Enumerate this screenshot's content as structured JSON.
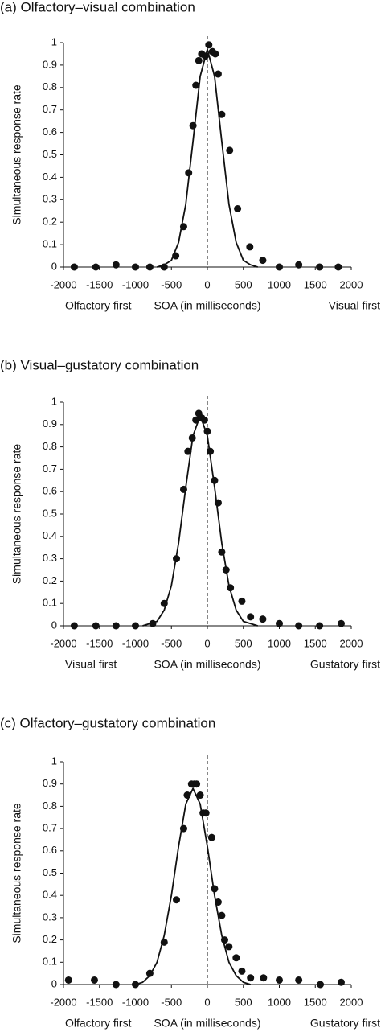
{
  "chart_data": [
    {
      "type": "scatter",
      "title": "(a) Olfactory–visual combination",
      "y_label": "Simultaneous response rate",
      "x_label": "SOA (in milliseconds)",
      "x_left_label": "Olfactory first",
      "x_right_label": "Visual first",
      "xlim": [
        -2000,
        2000
      ],
      "ylim": [
        0,
        1
      ],
      "xticks": [
        -2000,
        -1500,
        -1000,
        -500,
        0,
        500,
        1000,
        1500,
        2000
      ],
      "yticks": [
        0,
        0.1,
        0.2,
        0.3,
        0.4,
        0.5,
        0.6,
        0.7,
        0.8,
        0.9,
        1
      ],
      "reference_x": 0,
      "points": {
        "color": "#111111",
        "x": [
          -1850,
          -1550,
          -1270,
          -1000,
          -800,
          -600,
          -440,
          -330,
          -260,
          -200,
          -160,
          -120,
          -80,
          -30,
          20,
          70,
          110,
          150,
          200,
          310,
          420,
          590,
          770,
          1000,
          1270,
          1560,
          1820
        ],
        "y": [
          0,
          0,
          0.01,
          0,
          0,
          0,
          0.05,
          0.18,
          0.42,
          0.63,
          0.81,
          0.92,
          0.95,
          0.94,
          0.99,
          0.96,
          0.95,
          0.86,
          0.68,
          0.52,
          0.26,
          0.09,
          0.03,
          0,
          0.01,
          0,
          0
        ]
      },
      "fit": {
        "color": "#111111",
        "x": [
          -700,
          -600,
          -500,
          -400,
          -300,
          -200,
          -100,
          0,
          100,
          200,
          300,
          400,
          500,
          600,
          700
        ],
        "y": [
          0,
          0.01,
          0.03,
          0.11,
          0.28,
          0.56,
          0.85,
          0.97,
          0.85,
          0.56,
          0.28,
          0.11,
          0.03,
          0.01,
          0
        ]
      }
    },
    {
      "type": "scatter",
      "title": "(b) Visual–gustatory combination",
      "y_label": "Simultaneous response rate",
      "x_label": "SOA (in milliseconds)",
      "x_left_label": "Visual first",
      "x_right_label": "Gustatory first",
      "xlim": [
        -2000,
        2000
      ],
      "ylim": [
        0,
        1
      ],
      "xticks": [
        -2000,
        -1500,
        -1000,
        -500,
        0,
        500,
        1000,
        1500,
        2000
      ],
      "yticks": [
        0,
        0.1,
        0.2,
        0.3,
        0.4,
        0.5,
        0.6,
        0.7,
        0.8,
        0.9,
        1
      ],
      "reference_x": 0,
      "points": {
        "color": "#111111",
        "x": [
          -1850,
          -1550,
          -1270,
          -1000,
          -760,
          -600,
          -430,
          -330,
          -270,
          -210,
          -160,
          -120,
          -80,
          -40,
          0,
          40,
          100,
          150,
          200,
          260,
          320,
          480,
          600,
          770,
          1000,
          1270,
          1560,
          1860
        ],
        "y": [
          0,
          0,
          0,
          0,
          0.01,
          0.1,
          0.3,
          0.61,
          0.78,
          0.84,
          0.92,
          0.95,
          0.93,
          0.92,
          0.87,
          0.78,
          0.65,
          0.55,
          0.33,
          0.25,
          0.17,
          0.11,
          0.04,
          0.03,
          0.01,
          0,
          0,
          0.01
        ]
      },
      "fit": {
        "color": "#111111",
        "x": [
          -900,
          -800,
          -700,
          -600,
          -500,
          -400,
          -300,
          -200,
          -100,
          0,
          100,
          200,
          300,
          400,
          500,
          600,
          700
        ],
        "y": [
          0,
          0.01,
          0.02,
          0.07,
          0.18,
          0.37,
          0.62,
          0.85,
          0.94,
          0.85,
          0.62,
          0.37,
          0.18,
          0.07,
          0.02,
          0.01,
          0
        ]
      }
    },
    {
      "type": "scatter",
      "title": "(c) Olfactory–gustatory combination",
      "y_label": "Simultaneous response rate",
      "x_label": "SOA (in milliseconds)",
      "x_left_label": "Olfactory first",
      "x_right_label": "Gustatory first",
      "xlim": [
        -2000,
        2000
      ],
      "ylim": [
        0,
        1
      ],
      "xticks": [
        -2000,
        -1500,
        -1000,
        -500,
        0,
        500,
        1000,
        1500,
        2000
      ],
      "yticks": [
        0,
        0.1,
        0.2,
        0.3,
        0.4,
        0.5,
        0.6,
        0.7,
        0.8,
        0.9,
        1
      ],
      "reference_x": 0,
      "points": {
        "color": "#111111",
        "x": [
          -1930,
          -1570,
          -1270,
          -1000,
          -800,
          -600,
          -430,
          -330,
          -280,
          -220,
          -180,
          -150,
          -100,
          -60,
          -20,
          60,
          100,
          150,
          200,
          240,
          300,
          400,
          480,
          600,
          780,
          1000,
          1270,
          1570,
          1860
        ],
        "y": [
          0.02,
          0.02,
          0,
          0,
          0.05,
          0.19,
          0.38,
          0.7,
          0.85,
          0.9,
          0.9,
          0.9,
          0.85,
          0.77,
          0.77,
          0.66,
          0.43,
          0.37,
          0.31,
          0.2,
          0.17,
          0.12,
          0.06,
          0.03,
          0.03,
          0.02,
          0.02,
          0,
          0.01
        ]
      },
      "fit": {
        "color": "#111111",
        "x": [
          -1000,
          -900,
          -800,
          -700,
          -600,
          -500,
          -400,
          -300,
          -200,
          -100,
          0,
          100,
          200,
          300,
          400,
          500,
          600
        ],
        "y": [
          0,
          0.01,
          0.04,
          0.1,
          0.22,
          0.4,
          0.62,
          0.81,
          0.88,
          0.81,
          0.62,
          0.4,
          0.22,
          0.1,
          0.04,
          0.01,
          0
        ]
      }
    }
  ]
}
